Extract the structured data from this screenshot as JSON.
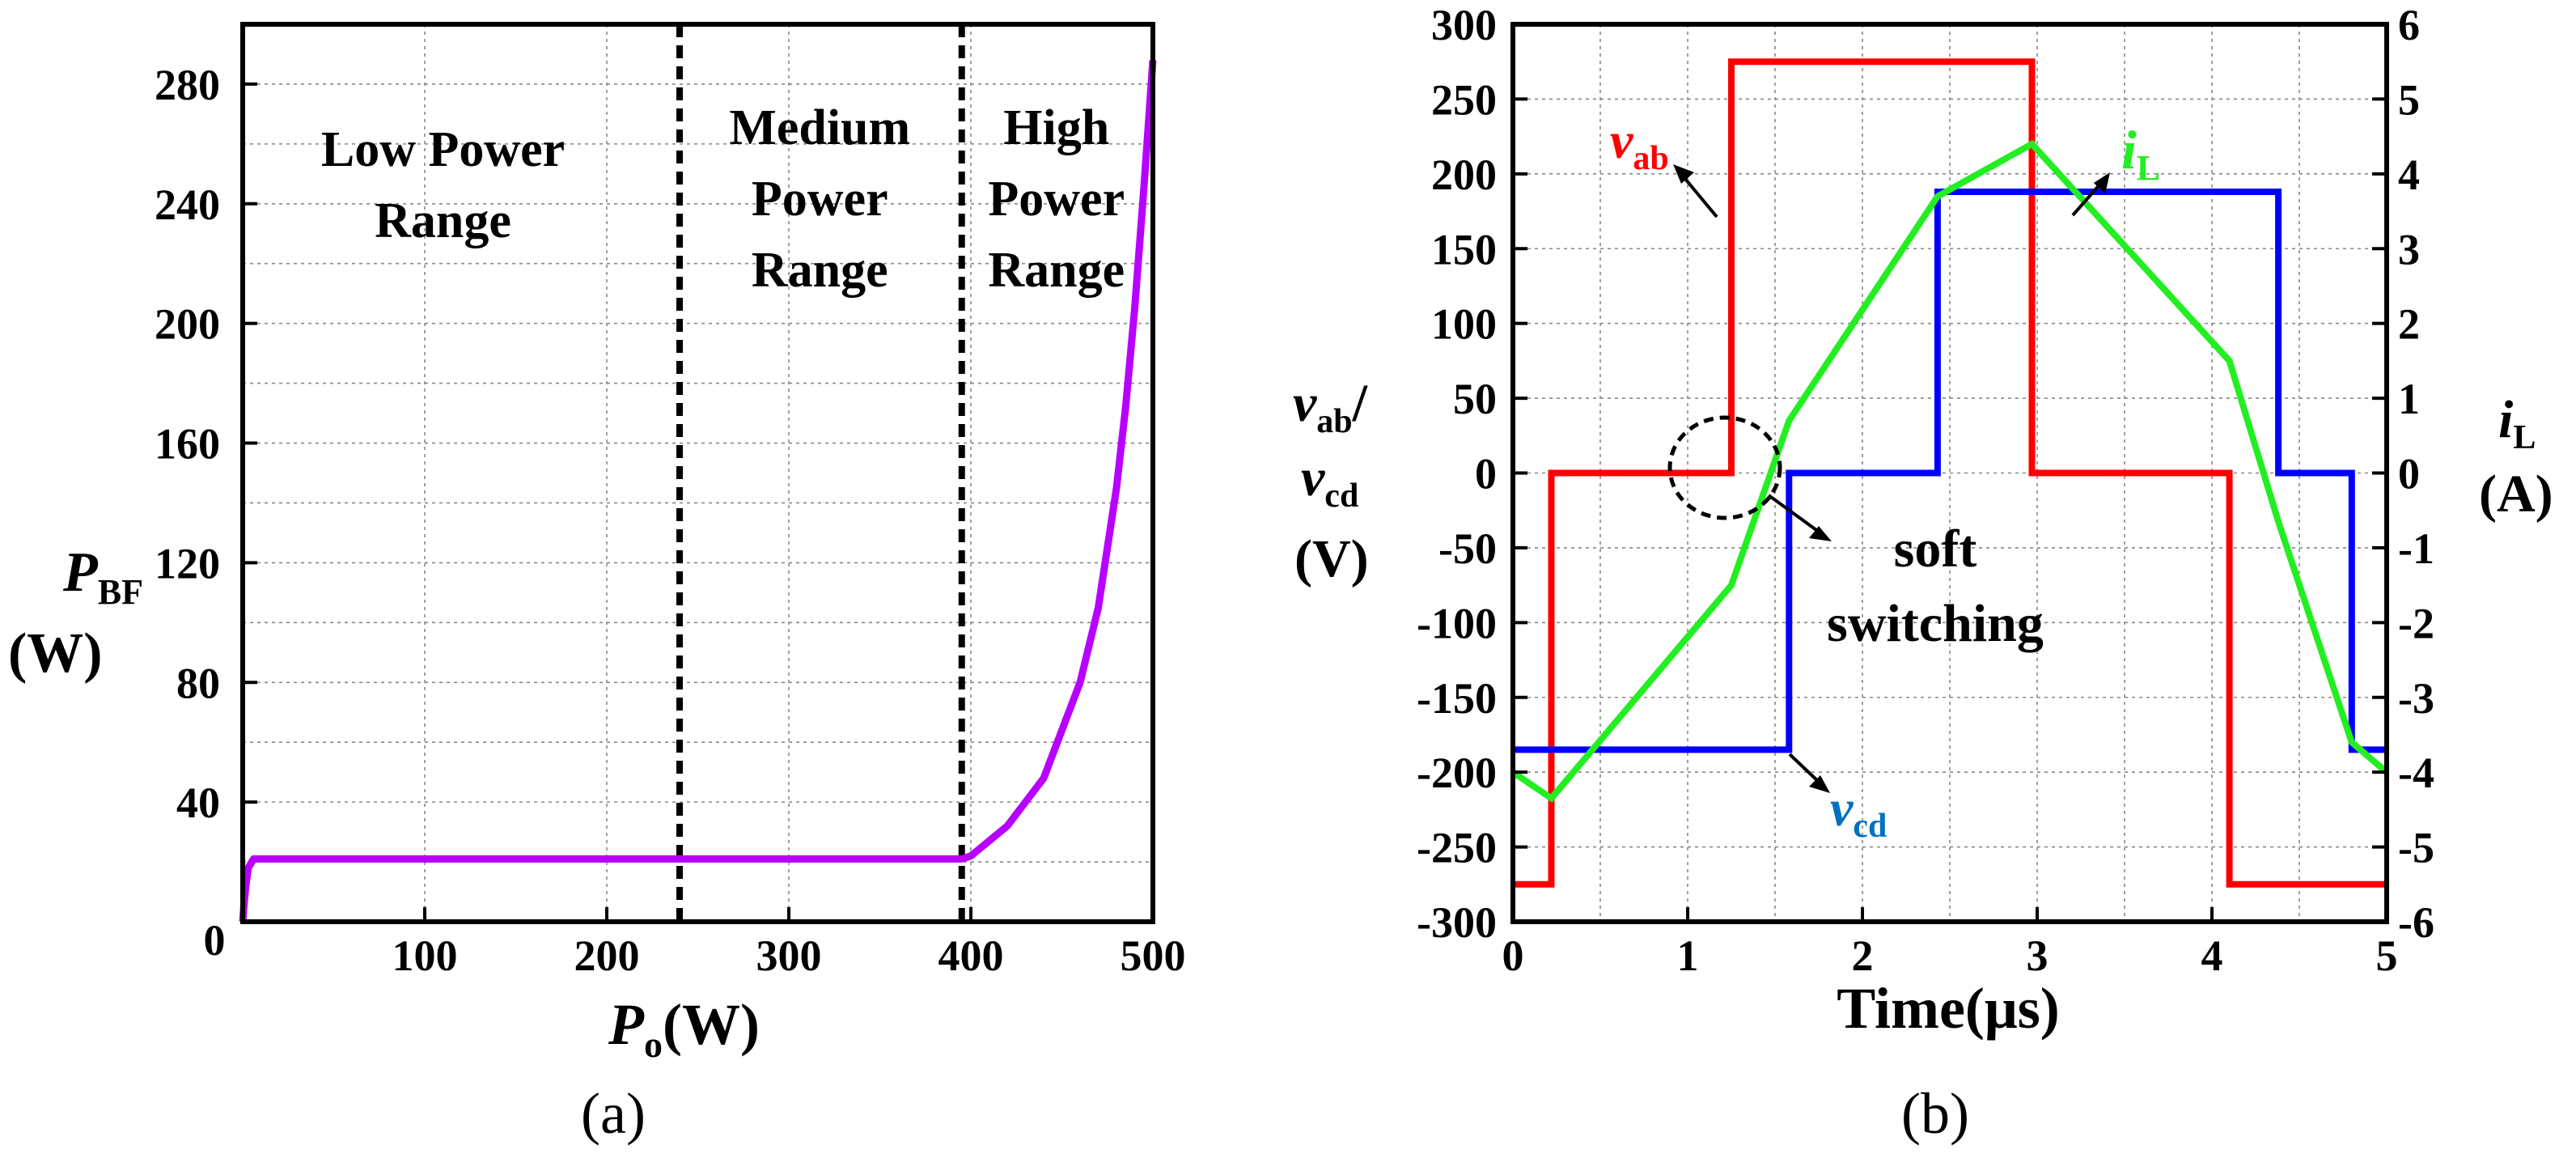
{
  "chart_data": [
    {
      "id": "a",
      "type": "line",
      "panel_label": "(a)",
      "xlabel": {
        "main": "P",
        "sub": "o",
        "unit": "(W)"
      },
      "ylabel": {
        "main": "P",
        "sub": "BF",
        "unit": "(W)"
      },
      "xlim": [
        0,
        500
      ],
      "ylim": [
        0,
        300
      ],
      "x_ticks": [
        0,
        100,
        200,
        300,
        400,
        500
      ],
      "x_tick_labels": [
        "100",
        "200",
        "300",
        "400",
        "500"
      ],
      "y_ticks": [
        0,
        40,
        80,
        120,
        160,
        200,
        240,
        280
      ],
      "y_tick_labels": [
        "0",
        "40",
        "80",
        "120",
        "160",
        "200",
        "240",
        "280"
      ],
      "boundaries": [
        240,
        395
      ],
      "regions": [
        {
          "x": 110,
          "lines": [
            "Low Power",
            "Range"
          ]
        },
        {
          "x": 317,
          "lines": [
            "Medium",
            "Power",
            "Range"
          ]
        },
        {
          "x": 447,
          "lines": [
            "High",
            "Power",
            "Range"
          ]
        }
      ],
      "series": [
        {
          "name": "P_BF",
          "color": "#b700ff",
          "x": [
            0,
            0.5,
            1.5,
            3,
            6,
            10,
            50,
            100,
            200,
            300,
            395,
            400,
            420,
            440,
            460,
            470,
            480,
            485,
            490,
            495,
            500
          ],
          "y": [
            0,
            4,
            11,
            18,
            21,
            21,
            21,
            21,
            21,
            21,
            21,
            22,
            32,
            48,
            80,
            105,
            145,
            172,
            205,
            245,
            288
          ]
        }
      ]
    },
    {
      "id": "b",
      "type": "line",
      "panel_label": "(b)",
      "xlabel": "Time(μs)",
      "ylabel_left": {
        "line1_main": "v",
        "line1_sub": "ab",
        "slash": "/",
        "line2_main": "v",
        "line2_sub": "cd",
        "unit": "(V)"
      },
      "ylabel_right": {
        "main": "i",
        "sub": "L",
        "unit": "(A)"
      },
      "xlim": [
        0,
        5
      ],
      "ylim_left": [
        -300,
        300
      ],
      "ylim_right": [
        -6,
        6
      ],
      "x_ticks": [
        0,
        1,
        2,
        3,
        4,
        5
      ],
      "x_tick_labels": [
        "0",
        "1",
        "2",
        "3",
        "4",
        "5"
      ],
      "y_left_ticks": [
        300,
        250,
        200,
        150,
        100,
        50,
        0,
        -50,
        -100,
        -150,
        -200,
        -250,
        -300
      ],
      "y_left_tick_labels": [
        "300",
        "250",
        "200",
        "150",
        "100",
        "50",
        "0",
        "-50",
        "-100",
        "-150",
        "-200",
        "-250",
        "-300"
      ],
      "y_right_ticks": [
        6,
        5,
        4,
        3,
        2,
        1,
        0,
        -1,
        -2,
        -3,
        -4,
        -5,
        -6
      ],
      "y_right_tick_labels": [
        "6",
        "5",
        "4",
        "3",
        "2",
        "1",
        "0",
        "-1",
        "-2",
        "-3",
        "-4",
        "-5",
        "-6"
      ],
      "series": [
        {
          "name": "v_ab",
          "label_main": "v",
          "label_sub": "ab",
          "axis": "left",
          "color": "#ff0000",
          "x": [
            0,
            0.22,
            0.22,
            1.25,
            1.25,
            2.97,
            2.97,
            4.1,
            4.1,
            5
          ],
          "y": [
            -275,
            -275,
            0,
            0,
            275,
            275,
            0,
            0,
            -275,
            -275
          ]
        },
        {
          "name": "v_cd",
          "label_main": "v",
          "label_sub": "cd",
          "axis": "left",
          "color": "#0000ff",
          "x": [
            0,
            1.58,
            1.58,
            2.43,
            2.43,
            4.38,
            4.38,
            4.8,
            4.8,
            5
          ],
          "y": [
            -185,
            -185,
            0,
            0,
            188,
            188,
            0,
            0,
            -185,
            -185
          ]
        },
        {
          "name": "i_L",
          "label_main": "i",
          "label_sub": "L",
          "axis": "right",
          "color": "#22ee22",
          "x": [
            0,
            0.22,
            1.25,
            1.58,
            2.43,
            2.97,
            4.1,
            4.38,
            4.8,
            5
          ],
          "y": [
            -4.0,
            -4.35,
            -1.5,
            0.7,
            3.7,
            4.4,
            1.5,
            -0.65,
            -3.6,
            -4.0
          ]
        }
      ],
      "annotation": {
        "lines": [
          "soft",
          "switching"
        ],
        "x": 1.25,
        "y": 0
      }
    }
  ]
}
